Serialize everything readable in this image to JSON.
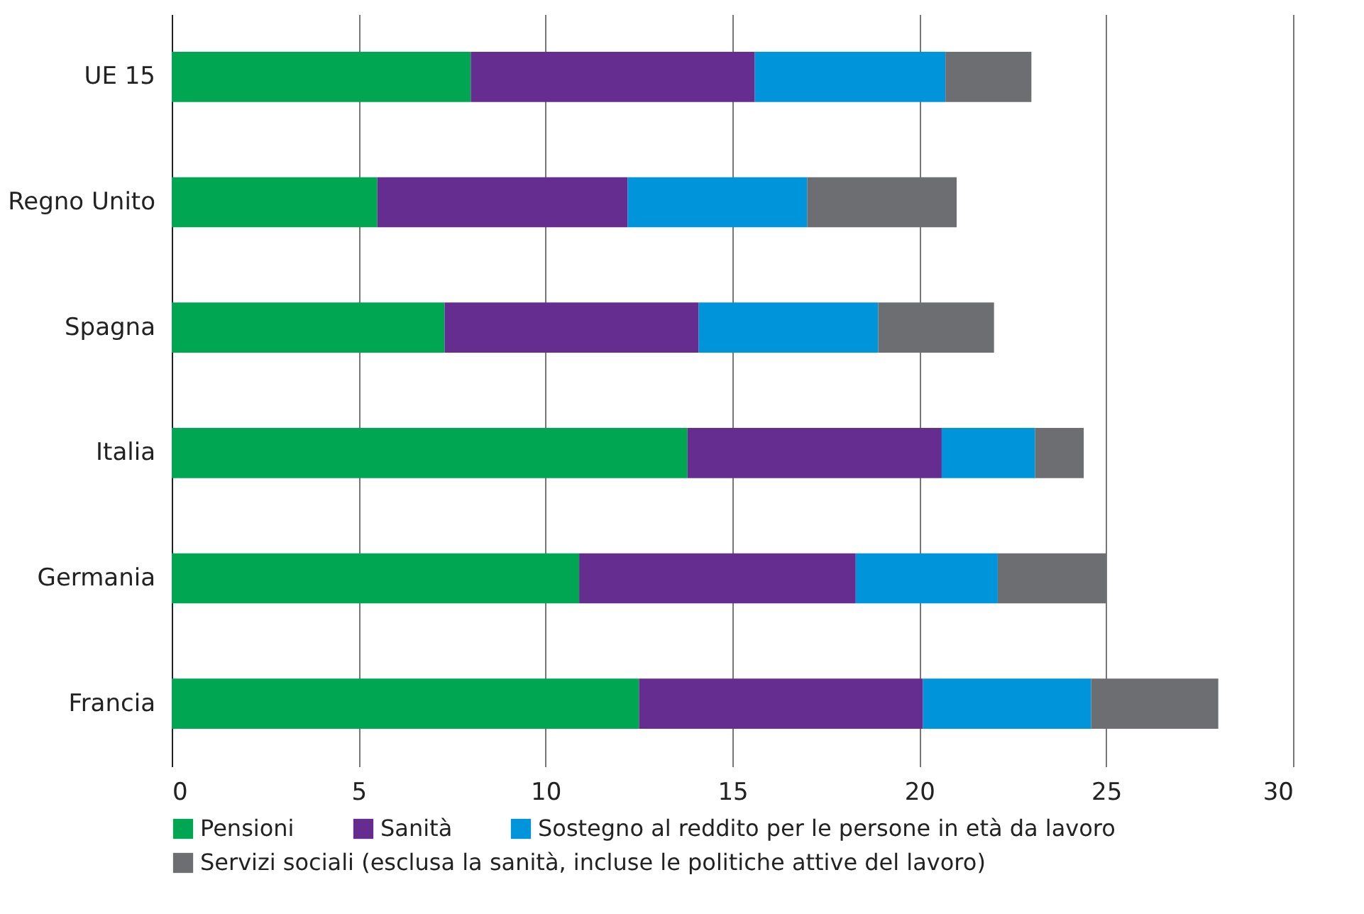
{
  "chart_data": {
    "type": "bar",
    "orientation": "horizontal",
    "stacked": true,
    "categories": [
      "UE 15",
      "Regno Unito",
      "Spagna",
      "Italia",
      "Germania",
      "Francia"
    ],
    "series": [
      {
        "name": "Pensioni",
        "color": "#00a651",
        "values": [
          8.0,
          5.5,
          7.3,
          13.8,
          10.9,
          12.5
        ]
      },
      {
        "name": "Sanità",
        "color": "#662d91",
        "values": [
          7.6,
          6.7,
          6.8,
          6.8,
          7.4,
          7.6
        ]
      },
      {
        "name": "Sostegno al reddito per le persone in età da lavoro",
        "color": "#0095da",
        "values": [
          5.1,
          4.8,
          4.8,
          2.5,
          3.8,
          4.5
        ]
      },
      {
        "name": "Servizi sociali (esclusa la sanità, incluse le politiche attive del lavoro)",
        "color": "#6d6e71",
        "values": [
          2.3,
          4.0,
          3.1,
          1.3,
          2.9,
          3.4
        ]
      }
    ],
    "xlim": [
      0,
      30
    ],
    "xticks": [
      0,
      5,
      10,
      15,
      20,
      25,
      30
    ],
    "grid": "x",
    "legend": "bottom"
  }
}
